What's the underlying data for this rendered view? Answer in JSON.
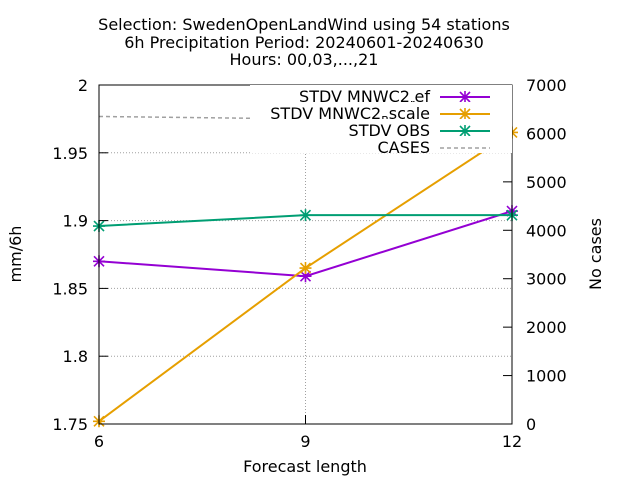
{
  "chart_data": {
    "type": "line",
    "title_lines": [
      "Selection: SwedenOpenLandWind using    54 stations",
      "6h Precipitation   Period: 20240601-20240630",
      "Hours: 00,03,...,21"
    ],
    "xlabel": "Forecast length",
    "ylabel": "mm/6h",
    "y2label": "No cases",
    "x": [
      6,
      9,
      12
    ],
    "xticks": [
      "6",
      "9",
      "12"
    ],
    "ylim": [
      1.75,
      2.0
    ],
    "yticks": [
      "1.75",
      "1.8",
      "1.85",
      "1.9",
      "1.95",
      "2"
    ],
    "y2lim": [
      0,
      7000
    ],
    "y2ticks": [
      "0",
      "1000",
      "2000",
      "3000",
      "4000",
      "5000",
      "6000",
      "7000"
    ],
    "grid": true,
    "legend_position": "top-right",
    "series": [
      {
        "name": "STDV MNWC2_ref",
        "legend_main": "STDV MNWC2",
        "legend_sub": "r",
        "legend_rest": "ef",
        "color": "#9400d3",
        "axis": "y",
        "marker": "x-star",
        "values": [
          1.87,
          1.859,
          1.907
        ]
      },
      {
        "name": "STDV MNWC2_Bscale",
        "legend_main": "STDV MNWC2",
        "legend_sub": "B",
        "legend_rest": "scale",
        "color": "#e69f00",
        "axis": "y",
        "marker": "x-star",
        "values": [
          1.752,
          1.865,
          1.965
        ]
      },
      {
        "name": "STDV OBS",
        "legend_main": "STDV OBS",
        "legend_sub": "",
        "legend_rest": "",
        "color": "#009e73",
        "axis": "y",
        "marker": "x-star",
        "values": [
          1.896,
          1.904,
          1.904
        ]
      },
      {
        "name": "CASES",
        "legend_main": "CASES",
        "legend_sub": "",
        "legend_rest": "",
        "color": "#a0a0a0",
        "axis": "y2",
        "marker": "none",
        "dashed": true,
        "values": [
          6350,
          6300,
          6250
        ]
      }
    ]
  }
}
